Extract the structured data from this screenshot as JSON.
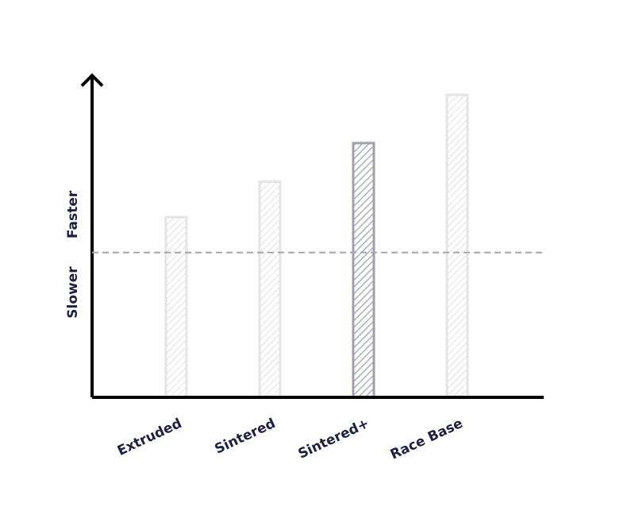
{
  "chart_data": {
    "type": "bar",
    "categories": [
      "Extruded",
      "Sintered",
      "Sintered+",
      "Race Base"
    ],
    "values": [
      56,
      67,
      79,
      94
    ],
    "colors": [
      "#e4e5e9",
      "#e4e5e9",
      "#9ea2ad",
      "#e4e5e9"
    ],
    "ylim": [
      0,
      100
    ],
    "y_label_top": "Faster",
    "y_label_bottom": "Slower",
    "reference_line": 45,
    "reference_color": "#a3a6b0"
  }
}
